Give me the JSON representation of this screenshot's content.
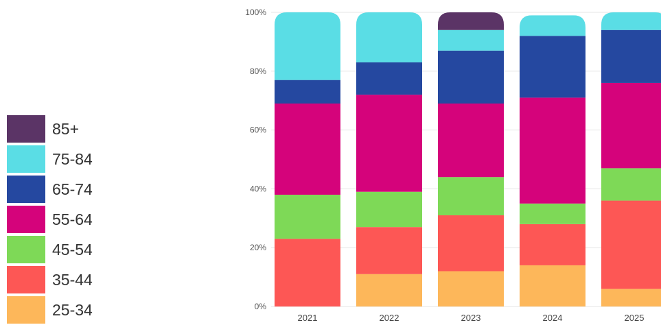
{
  "chart_data": {
    "type": "bar",
    "stacked": true,
    "normalized": true,
    "categories": [
      "2021",
      "2022",
      "2023",
      "2024",
      "2025"
    ],
    "yticks": [
      "0%",
      "20%",
      "40%",
      "60%",
      "80%",
      "100%"
    ],
    "ylim": [
      0,
      100
    ],
    "grid": true,
    "legend_position": "left",
    "series": [
      {
        "name": "25-34",
        "color": "#FDB75A",
        "values": [
          0,
          11,
          12,
          14,
          6
        ]
      },
      {
        "name": "35-44",
        "color": "#FD5755",
        "values": [
          23,
          16,
          19,
          14,
          30
        ]
      },
      {
        "name": "45-54",
        "color": "#7ED957",
        "values": [
          15,
          12,
          13,
          7,
          11
        ]
      },
      {
        "name": "55-64",
        "color": "#D5037B",
        "values": [
          31,
          33,
          25,
          36,
          29
        ]
      },
      {
        "name": "65-74",
        "color": "#2548A0",
        "values": [
          8,
          11,
          18,
          21,
          18
        ]
      },
      {
        "name": "75-84",
        "color": "#5ADDE5",
        "values": [
          23,
          17,
          7,
          7,
          6
        ]
      },
      {
        "name": "85+",
        "color": "#5B3466",
        "values": [
          0,
          0,
          6,
          0,
          0
        ]
      }
    ]
  }
}
